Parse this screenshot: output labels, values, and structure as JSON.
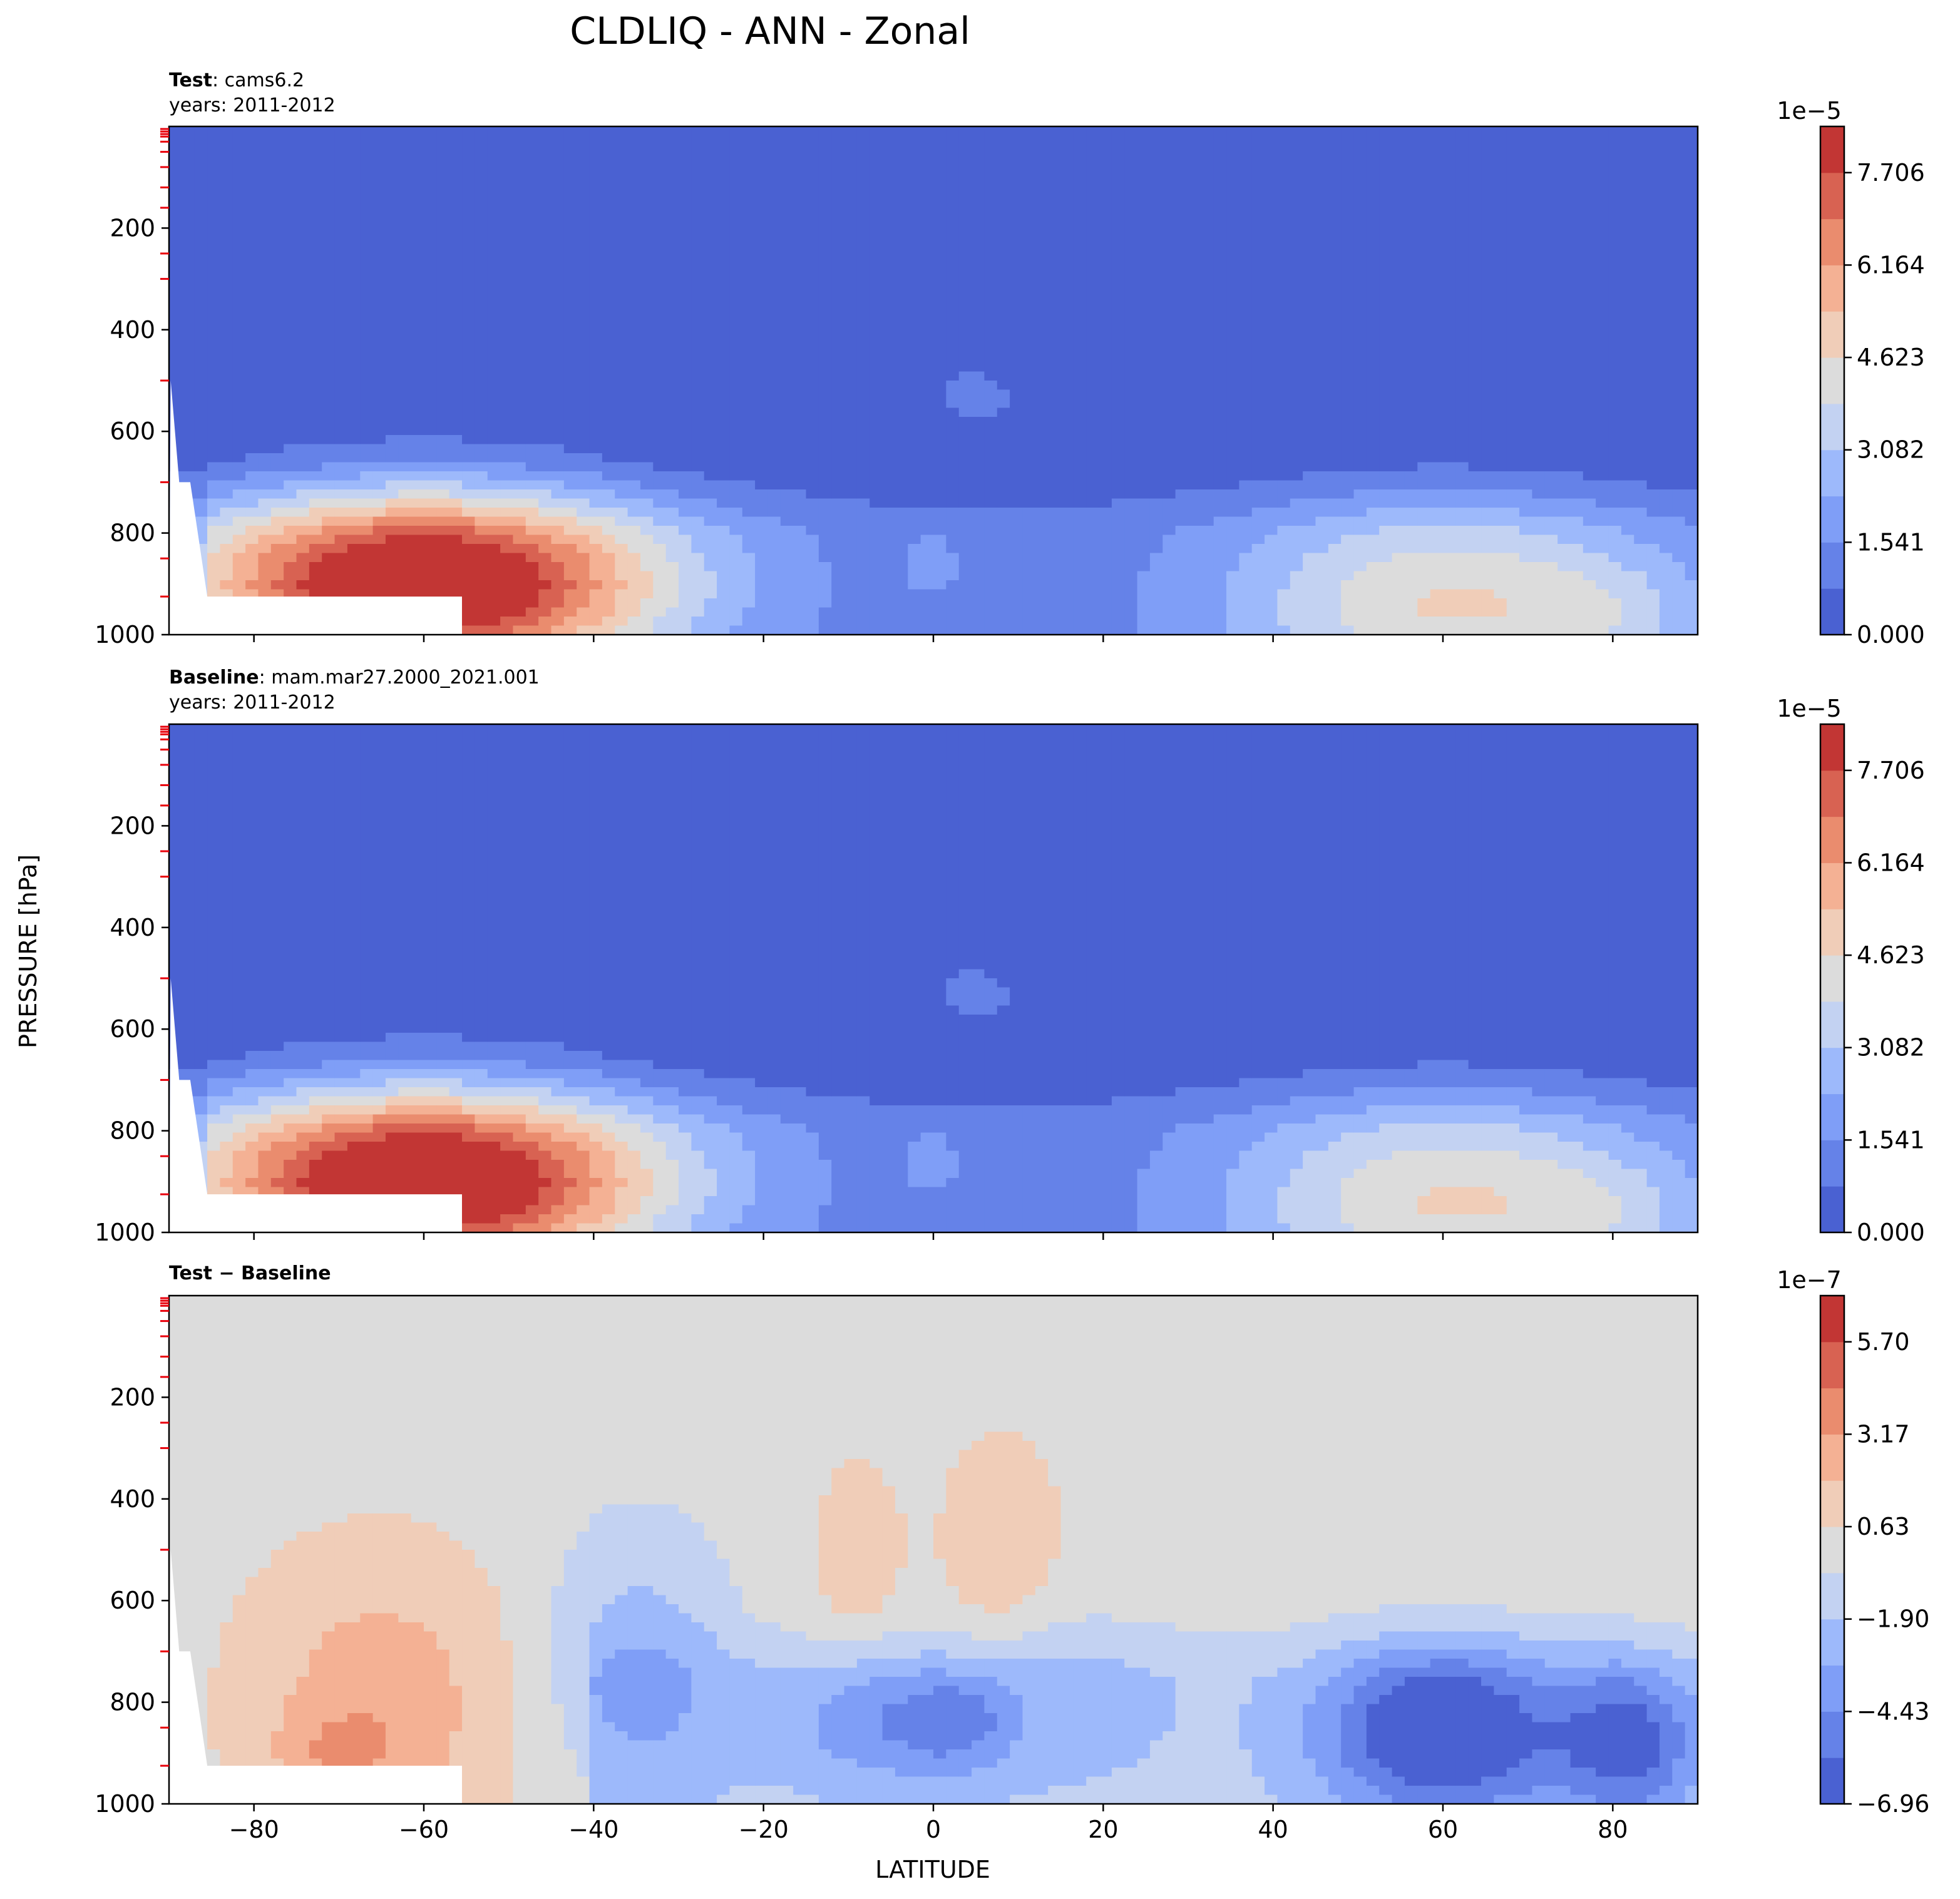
{
  "figure": {
    "title": "CLDLIQ - ANN - Zonal",
    "xlabel": "LATITUDE",
    "ylabel": "PRESSURE [hPa]"
  },
  "colors": {
    "cmap": [
      "#4a61d2",
      "#6582e8",
      "#7f9ef7",
      "#9db9fb",
      "#c3d2f2",
      "#dcdcdc",
      "#f0cdb8",
      "#f4b194",
      "#ea8c6e",
      "#d86252",
      "#c23634"
    ],
    "axes": "#000000",
    "ticks_red": "#e8000b",
    "mask": "#ffffff"
  },
  "chart_data": [
    {
      "id": "test",
      "type": "contour",
      "label_bold": "Test",
      "label_rest": ": cams6.2",
      "years": "years: 2011-2012",
      "xlim": [
        -90,
        90
      ],
      "ylim": [
        1000,
        0
      ],
      "xticks": [
        -80,
        -60,
        -40,
        -20,
        0,
        20,
        40,
        60,
        80
      ],
      "yticks": [
        200,
        400,
        600,
        800,
        1000
      ],
      "colorbar": {
        "exponent": "1e−5",
        "levels_min": 0.0,
        "levels_max": 8.477,
        "n_levels": 11,
        "tick_labels": [
          "0.000",
          "1.541",
          "3.082",
          "4.623",
          "6.164",
          "7.706"
        ]
      },
      "blobs": [
        {
          "lat": -60,
          "p": 900,
          "slat": 20,
          "sp": 130,
          "amp": 8.6
        },
        {
          "lat": 60,
          "p": 940,
          "slat": 18,
          "sp": 150,
          "amp": 3.6
        },
        {
          "lat": 80,
          "p": 960,
          "slat": 8,
          "sp": 80,
          "amp": 1.0
        },
        {
          "lat": 5,
          "p": 530,
          "slat": 5,
          "sp": 60,
          "amp": 1.0
        },
        {
          "lat": 0,
          "p": 860,
          "slat": 3,
          "sp": 60,
          "amp": 0.6
        }
      ],
      "ridges": [
        {
          "lat0": -85,
          "lat1": 90,
          "p0": 660,
          "p1": 1000,
          "amp": 1.05
        }
      ]
    },
    {
      "id": "baseline",
      "type": "contour",
      "label_bold": "Baseline",
      "label_rest": ": mam.mar27.2000_2021.001",
      "years": "years: 2011-2012",
      "xlim": [
        -90,
        90
      ],
      "ylim": [
        1000,
        0
      ],
      "xticks": [
        -80,
        -60,
        -40,
        -20,
        0,
        20,
        40,
        60,
        80
      ],
      "yticks": [
        200,
        400,
        600,
        800,
        1000
      ],
      "colorbar": {
        "exponent": "1e−5",
        "levels_min": 0.0,
        "levels_max": 8.477,
        "n_levels": 11,
        "tick_labels": [
          "0.000",
          "1.541",
          "3.082",
          "4.623",
          "6.164",
          "7.706"
        ]
      },
      "blobs": [
        {
          "lat": -60,
          "p": 900,
          "slat": 20,
          "sp": 130,
          "amp": 8.6
        },
        {
          "lat": 60,
          "p": 940,
          "slat": 18,
          "sp": 150,
          "amp": 3.6
        },
        {
          "lat": 80,
          "p": 960,
          "slat": 8,
          "sp": 80,
          "amp": 1.0
        },
        {
          "lat": 5,
          "p": 530,
          "slat": 5,
          "sp": 60,
          "amp": 1.0
        },
        {
          "lat": 0,
          "p": 860,
          "slat": 3,
          "sp": 60,
          "amp": 0.6
        }
      ],
      "ridges": [
        {
          "lat0": -85,
          "lat1": 90,
          "p0": 660,
          "p1": 1000,
          "amp": 1.05
        }
      ]
    },
    {
      "id": "diff",
      "type": "contour",
      "label_bold": "Test − Baseline",
      "label_rest": "",
      "years": "",
      "xlim": [
        -90,
        90
      ],
      "ylim": [
        1000,
        0
      ],
      "xticks": [
        -80,
        -60,
        -40,
        -20,
        0,
        20,
        40,
        60,
        80
      ],
      "yticks": [
        200,
        400,
        600,
        800,
        1000
      ],
      "colorbar": {
        "exponent": "1e−7",
        "levels_min": -6.96,
        "levels_max": 6.96,
        "n_levels": 11,
        "tick_labels": [
          "−6.96",
          "−4.43",
          "−1.90",
          "0.63",
          "3.17",
          "5.70"
        ]
      },
      "background": 0.0,
      "blobs": [
        {
          "lat": -65,
          "p": 800,
          "slat": 12,
          "sp": 220,
          "amp": 2.6
        },
        {
          "lat": -70,
          "p": 900,
          "slat": 5,
          "sp": 60,
          "amp": 1.5
        },
        {
          "lat": 8,
          "p": 480,
          "slat": 5,
          "sp": 150,
          "amp": 1.8
        },
        {
          "lat": -9,
          "p": 500,
          "slat": 4,
          "sp": 140,
          "amp": 1.4
        },
        {
          "lat": 60,
          "p": 860,
          "slat": 10,
          "sp": 120,
          "amp": -6.6
        },
        {
          "lat": 82,
          "p": 880,
          "slat": 6,
          "sp": 110,
          "amp": -4.8
        },
        {
          "lat": -35,
          "p": 720,
          "slat": 8,
          "sp": 190,
          "amp": -2.6
        },
        {
          "lat": -5,
          "p": 840,
          "slat": 9,
          "sp": 90,
          "amp": -2.9
        },
        {
          "lat": 3,
          "p": 840,
          "slat": 4,
          "sp": 60,
          "amp": -1.8
        },
        {
          "lat": 15,
          "p": 780,
          "slat": 10,
          "sp": 130,
          "amp": -1.2
        }
      ],
      "ridges": [
        {
          "lat0": -40,
          "lat1": 90,
          "p0": 620,
          "p1": 960,
          "amp": -1.4
        }
      ]
    }
  ]
}
